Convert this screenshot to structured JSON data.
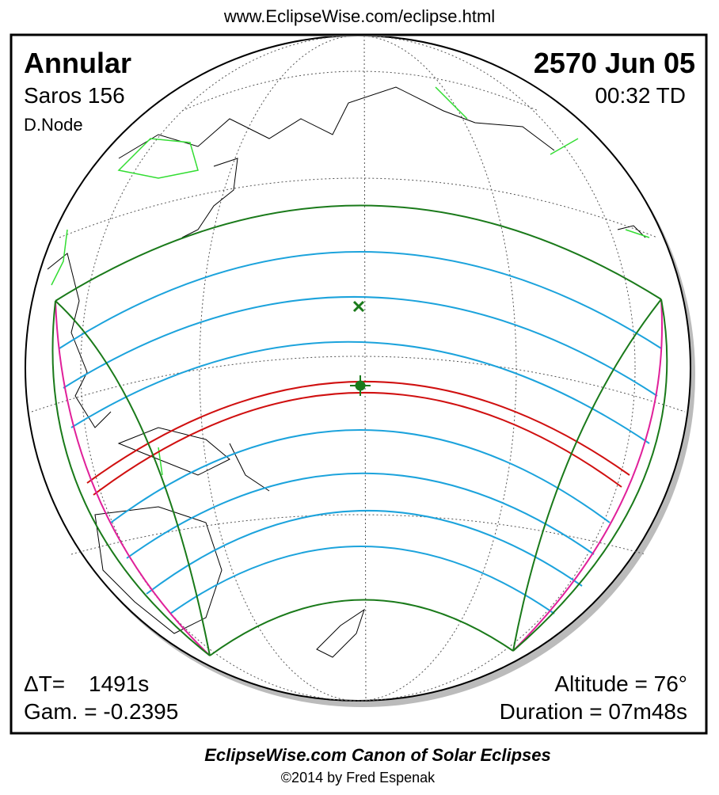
{
  "header": {
    "url": "www.EclipseWise.com/eclipse.html"
  },
  "panel": {
    "eclipse_type": "Annular",
    "saros": "Saros 156",
    "node": "D.Node",
    "date": "2570 Jun 05",
    "time": "00:32 TD",
    "delta_t_label": "ΔT=",
    "delta_t": "1491s",
    "gamma": "Gam. = -0.2395",
    "altitude": "Altitude = 76°",
    "duration": "Duration = 07m48s"
  },
  "footer": {
    "title": "EclipseWise.com Canon of Solar Eclipses",
    "credit": "©2014 by Fred Espenak"
  }
}
